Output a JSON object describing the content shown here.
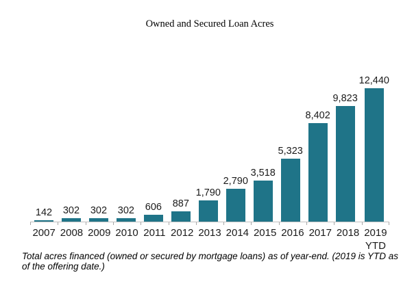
{
  "chart_data": {
    "type": "bar",
    "title": "Owned and Secured Loan Acres",
    "categories": [
      "2007",
      "2008",
      "2009",
      "2010",
      "2011",
      "2012",
      "2013",
      "2014",
      "2015",
      "2016",
      "2017",
      "2018",
      "2019\nYTD"
    ],
    "values": [
      142,
      302,
      302,
      302,
      606,
      887,
      1790,
      2790,
      3518,
      5323,
      8402,
      9823,
      12440
    ],
    "value_labels": [
      "142",
      "302",
      "302",
      "302",
      "606",
      "887",
      "1,790",
      "2,790",
      "3,518",
      "5,323",
      "8,402",
      "9,823",
      "12,440"
    ],
    "xlabel": "",
    "ylabel": "",
    "ylim": [
      0,
      12440
    ],
    "grid": false,
    "legend_position": "none",
    "bar_color": "#1F7488",
    "axis_line_color": "#BFBFBF",
    "tick_color": "#A6A6A6",
    "footnote": "Total acres financed (owned or secured by mortgage loans) as of year-end. (2019 is YTD as of the offering date.)"
  }
}
